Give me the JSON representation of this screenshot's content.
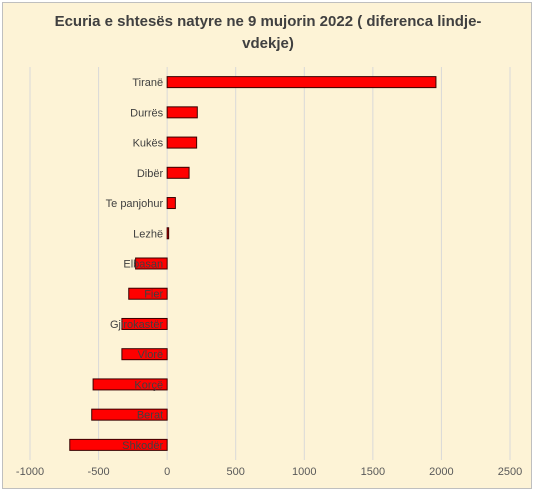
{
  "chart_data": {
    "type": "bar",
    "orientation": "horizontal",
    "title": "Ecuria e shtesës natyre ne 9 mujorin 2022 ( diferenca lindje-vdekje)",
    "categories": [
      "Tiranë",
      "Durrës",
      "Kukës",
      "Dibër",
      "Te panjohur",
      "Lezhë",
      "Elbasan",
      "Fier",
      "Gjirokastër",
      "Vlorë",
      "Korçë",
      "Berat",
      "Shkodër"
    ],
    "values": [
      1960,
      220,
      215,
      160,
      60,
      5,
      -230,
      -280,
      -330,
      -330,
      -540,
      -550,
      -710
    ],
    "xlim": [
      -1000,
      2500
    ],
    "xticks": [
      -1000,
      -500,
      0,
      500,
      1000,
      1500,
      2000,
      2500
    ],
    "xlabel": "",
    "ylabel": "",
    "grid": true,
    "legend": "none",
    "bar_color": "#ff0000",
    "bar_edge_color": "#3a0000",
    "grid_color": "#d9d9d9"
  }
}
